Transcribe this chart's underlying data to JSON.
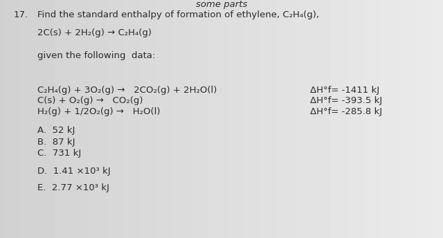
{
  "background_color": "#d8d8d8",
  "question_number": "17.",
  "question_text": "Find the standard enthalpy of formation of ethylene, C₂H₄(g),",
  "reaction_main": "2C(s) + 2H₂(g) → C₂H₄(g)",
  "given_text": "given the following  data:",
  "reactions": [
    "C₂H₄(g) + 3O₂(g) →   2CO₂(g) + 2H₂O(l)",
    "C(s) + O₂(g) →   CO₂(g)",
    "H₂(g) + 1/2O₂(g) →   H₂O(l)"
  ],
  "enthalpies": [
    "ΔH°f= -1411 kJ",
    "ΔH°f= -393.5 kJ",
    "ΔH°f= -285.8 kJ"
  ],
  "choices": [
    "A.  52 kJ",
    "B.  87 kJ",
    "C.  731 kJ",
    "D.  1.41 ×10³ kJ",
    "E.  2.77 ×10³ kJ"
  ],
  "top_text": "some parts",
  "font_size": 9.5,
  "text_color": "#2a2a2a"
}
